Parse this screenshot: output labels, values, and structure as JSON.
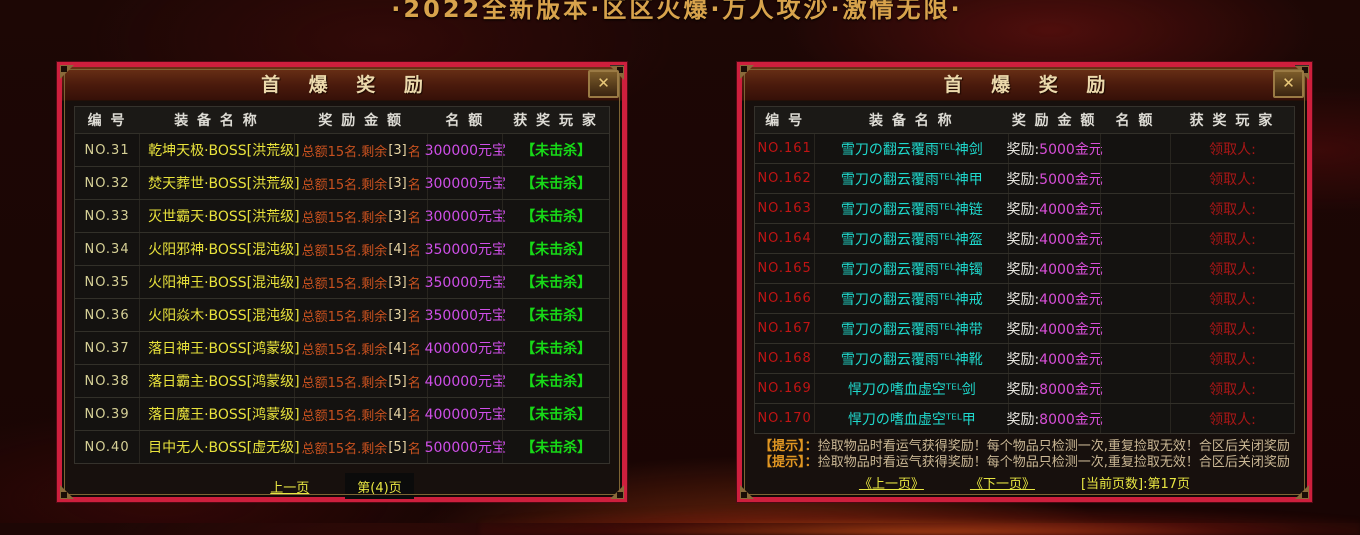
{
  "banner": "·2022全新版本·区区火爆·万人攻沙·激情无限·",
  "colors": {
    "frame_red": "#ce1f3d",
    "gold_trim": "#7d6434",
    "title_text": "#ecd9ac",
    "name_yellow": "#e8e23c",
    "name_cyan": "#1fd8cc",
    "reward_magenta": "#cf4fe8",
    "status_green": "#17d917",
    "quota_orange": "#c8511f",
    "claimer_red": "#a81616",
    "page_yellow": "#e8e642"
  },
  "left_panel": {
    "title": "首 爆 奖 励",
    "close_icon": "✕",
    "columns": {
      "no": "编 号",
      "name": "装 备 名 称",
      "reward": "奖 励 金 额",
      "quota": "名 额",
      "player": "获 奖 玩 家"
    },
    "rows": [
      {
        "no": "NO.31",
        "name": "乾坤天极·BOSS[洪荒级]",
        "quota_pre": "总额15名.剩余",
        "quota_num": "[3]",
        "quota_suf": "名",
        "reward": "300000元宝",
        "status": "【未击杀】"
      },
      {
        "no": "NO.32",
        "name": "焚天葬世·BOSS[洪荒级]",
        "quota_pre": "总额15名.剩余",
        "quota_num": "[3]",
        "quota_suf": "名",
        "reward": "300000元宝",
        "status": "【未击杀】"
      },
      {
        "no": "NO.33",
        "name": "灭世霸天·BOSS[洪荒级]",
        "quota_pre": "总额15名.剩余",
        "quota_num": "[3]",
        "quota_suf": "名",
        "reward": "300000元宝",
        "status": "【未击杀】"
      },
      {
        "no": "NO.34",
        "name": "火阳邪神·BOSS[混沌级]",
        "quota_pre": "总额15名.剩余",
        "quota_num": "[4]",
        "quota_suf": "名",
        "reward": "350000元宝",
        "status": "【未击杀】"
      },
      {
        "no": "NO.35",
        "name": "火阳神王·BOSS[混沌级]",
        "quota_pre": "总额15名.剩余",
        "quota_num": "[3]",
        "quota_suf": "名",
        "reward": "350000元宝",
        "status": "【未击杀】"
      },
      {
        "no": "NO.36",
        "name": "火阳焱木·BOSS[混沌级]",
        "quota_pre": "总额15名.剩余",
        "quota_num": "[3]",
        "quota_suf": "名",
        "reward": "350000元宝",
        "status": "【未击杀】"
      },
      {
        "no": "NO.37",
        "name": "落日神王·BOSS[鸿蒙级]",
        "quota_pre": "总额15名.剩余",
        "quota_num": "[4]",
        "quota_suf": "名",
        "reward": "400000元宝",
        "status": "【未击杀】"
      },
      {
        "no": "NO.38",
        "name": "落日霸主·BOSS[鸿蒙级]",
        "quota_pre": "总额15名.剩余",
        "quota_num": "[5]",
        "quota_suf": "名",
        "reward": "400000元宝",
        "status": "【未击杀】"
      },
      {
        "no": "NO.39",
        "name": "落日魔王·BOSS[鸿蒙级]",
        "quota_pre": "总额15名.剩余",
        "quota_num": "[4]",
        "quota_suf": "名",
        "reward": "400000元宝",
        "status": "【未击杀】"
      },
      {
        "no": "NO.40",
        "name": "目中无人·BOSS[虚无级]",
        "quota_pre": "总额15名.剩余",
        "quota_num": "[5]",
        "quota_suf": "名",
        "reward": "500000元宝",
        "status": "【未击杀】"
      }
    ],
    "pagination": {
      "prev": "上一页",
      "current": "第(4)页"
    }
  },
  "right_panel": {
    "title": "首 爆 奖 励",
    "close_icon": "✕",
    "columns": {
      "no": "编 号",
      "name": "装 备 名 称",
      "reward": "奖 励 金 额",
      "quota": "名 额",
      "player": "获 奖 玩 家"
    },
    "rows": [
      {
        "no": "NO.161",
        "name": "雪刀の翻云覆雨ᵀᴱᴸ神剑",
        "reward_label": "奖励:",
        "reward_value": "5000金元",
        "quota": "",
        "claimer": "领取人:"
      },
      {
        "no": "NO.162",
        "name": "雪刀の翻云覆雨ᵀᴱᴸ神甲",
        "reward_label": "奖励:",
        "reward_value": "5000金元",
        "quota": "",
        "claimer": "领取人:"
      },
      {
        "no": "NO.163",
        "name": "雪刀の翻云覆雨ᵀᴱᴸ神链",
        "reward_label": "奖励:",
        "reward_value": "4000金元",
        "quota": "",
        "claimer": "领取人:"
      },
      {
        "no": "NO.164",
        "name": "雪刀の翻云覆雨ᵀᴱᴸ神盔",
        "reward_label": "奖励:",
        "reward_value": "4000金元",
        "quota": "",
        "claimer": "领取人:"
      },
      {
        "no": "NO.165",
        "name": "雪刀の翻云覆雨ᵀᴱᴸ神镯",
        "reward_label": "奖励:",
        "reward_value": "4000金元",
        "quota": "",
        "claimer": "领取人:"
      },
      {
        "no": "NO.166",
        "name": "雪刀の翻云覆雨ᵀᴱᴸ神戒",
        "reward_label": "奖励:",
        "reward_value": "4000金元",
        "quota": "",
        "claimer": "领取人:"
      },
      {
        "no": "NO.167",
        "name": "雪刀の翻云覆雨ᵀᴱᴸ神带",
        "reward_label": "奖励:",
        "reward_value": "4000金元",
        "quota": "",
        "claimer": "领取人:"
      },
      {
        "no": "NO.168",
        "name": "雪刀の翻云覆雨ᵀᴱᴸ神靴",
        "reward_label": "奖励:",
        "reward_value": "4000金元",
        "quota": "",
        "claimer": "领取人:"
      },
      {
        "no": "NO.169",
        "name": "悍刀の嗜血虚空ᵀᴱᴸ剑",
        "reward_label": "奖励:",
        "reward_value": "8000金元",
        "quota": "",
        "claimer": "领取人:"
      },
      {
        "no": "NO.170",
        "name": "悍刀の嗜血虚空ᵀᴱᴸ甲",
        "reward_label": "奖励:",
        "reward_value": "8000金元",
        "quota": "",
        "claimer": "领取人:"
      }
    ],
    "tips": [
      {
        "label": "【提示】：",
        "body": "捡取物品时看运气获得奖励！每个物品只检测一次,重复捡取无效！合区后关闭奖励"
      },
      {
        "label": "【提示】：",
        "body": "捡取物品时看运气获得奖励！每个物品只检测一次,重复捡取无效！合区后关闭奖励"
      }
    ],
    "pagination": {
      "prev": "《上一页》",
      "next": "《下一页》",
      "current_info": "[当前页数]:第17页"
    }
  }
}
